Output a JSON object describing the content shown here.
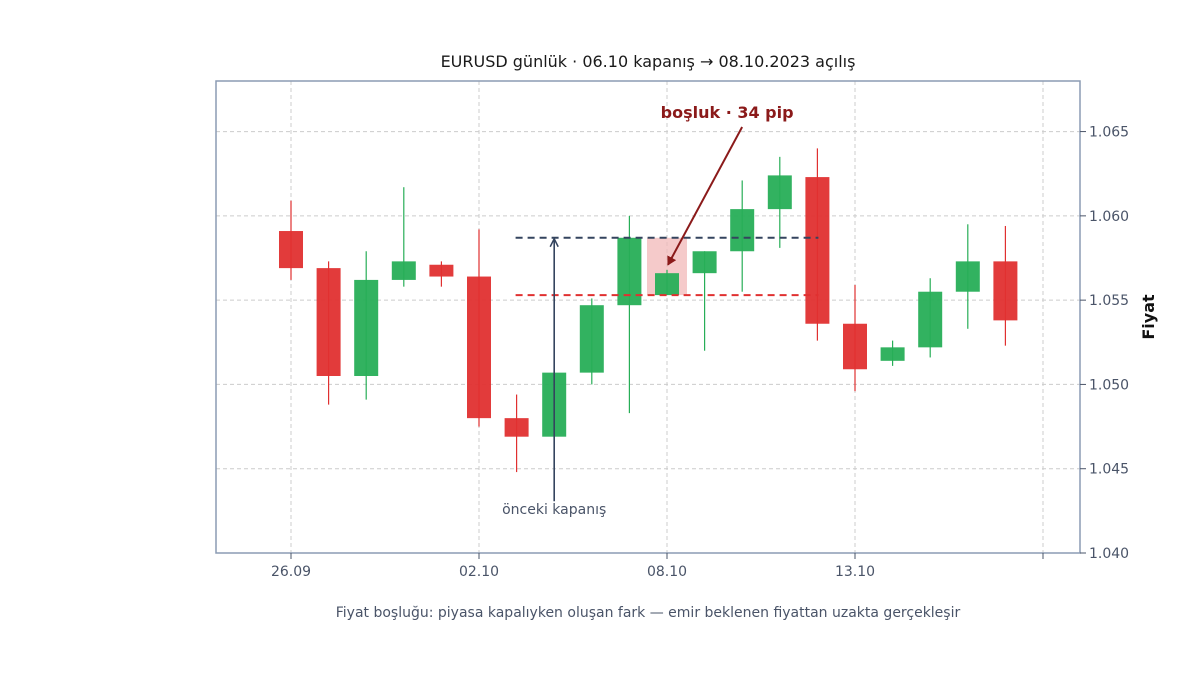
{
  "chart_data": {
    "type": "candlestick",
    "title": "EURUSD günlük · 06.10 kapanış → 08.10.2023 açılış",
    "ylabel": "Fiyat",
    "caption": "Fiyat boşluğu: piyasa kapalıyken oluşan fark — emir beklenen fiyattan uzakta gerçekleşir",
    "ylim": [
      1.04,
      1.068
    ],
    "yticks": [
      1.04,
      1.045,
      1.05,
      1.055,
      1.06,
      1.065
    ],
    "ytick_labels": [
      "1.040",
      "1.045",
      "1.050",
      "1.055",
      "1.060",
      "1.065"
    ],
    "xticks": [
      {
        "index": 0,
        "label": "26.09"
      },
      {
        "index": 5,
        "label": "02.10"
      },
      {
        "index": 10,
        "label": "08.10"
      },
      {
        "index": 15,
        "label": "13.10"
      },
      {
        "index": 20,
        "label": ""
      }
    ],
    "grid": true,
    "up_color": "#27ae57",
    "down_color": "#e03030",
    "candles": [
      {
        "open": 1.0591,
        "high": 1.0609,
        "low": 1.0562,
        "close": 1.0569
      },
      {
        "open": 1.0569,
        "high": 1.0573,
        "low": 1.0488,
        "close": 1.0505
      },
      {
        "open": 1.0505,
        "high": 1.0579,
        "low": 1.0491,
        "close": 1.0562
      },
      {
        "open": 1.0562,
        "high": 1.0617,
        "low": 1.0558,
        "close": 1.0573
      },
      {
        "open": 1.0571,
        "high": 1.0573,
        "low": 1.0558,
        "close": 1.0564
      },
      {
        "open": 1.0564,
        "high": 1.0592,
        "low": 1.0475,
        "close": 1.048
      },
      {
        "open": 1.048,
        "high": 1.0494,
        "low": 1.0448,
        "close": 1.0469
      },
      {
        "open": 1.0469,
        "high": 1.0507,
        "low": 1.0469,
        "close": 1.0507
      },
      {
        "open": 1.0507,
        "high": 1.0551,
        "low": 1.05,
        "close": 1.0547
      },
      {
        "open": 1.0547,
        "high": 1.06,
        "low": 1.0483,
        "close": 1.0587
      },
      {
        "open": 1.0553,
        "high": 1.0568,
        "low": 1.0553,
        "close": 1.0566
      },
      {
        "open": 1.0566,
        "high": 1.0579,
        "low": 1.052,
        "close": 1.0579
      },
      {
        "open": 1.0579,
        "high": 1.0621,
        "low": 1.0555,
        "close": 1.0604
      },
      {
        "open": 1.0604,
        "high": 1.0635,
        "low": 1.0581,
        "close": 1.0624
      },
      {
        "open": 1.0623,
        "high": 1.064,
        "low": 1.0526,
        "close": 1.0536
      },
      {
        "open": 1.0536,
        "high": 1.0559,
        "low": 1.0496,
        "close": 1.0509
      },
      {
        "open": 1.0514,
        "high": 1.0526,
        "low": 1.0511,
        "close": 1.0522
      },
      {
        "open": 1.0522,
        "high": 1.0563,
        "low": 1.0516,
        "close": 1.0555
      },
      {
        "open": 1.0555,
        "high": 1.0595,
        "low": 1.0533,
        "close": 1.0573
      },
      {
        "open": 1.0573,
        "high": 1.0594,
        "low": 1.0523,
        "close": 1.0538
      }
    ],
    "gap": {
      "from_index": 9,
      "to_index": 10,
      "close_level": 1.0587,
      "open_level": 1.0553,
      "line_start_index": 6,
      "line_end_index": 14,
      "highlight_color": "#f2b8b8",
      "close_line_color": "#34445e",
      "open_line_color": "#e03030"
    },
    "annotations": {
      "gap_label": "boşluk · 34 pip",
      "gap_label_color": "#8b1a1a",
      "gap_label_anchor": {
        "index": 11.2,
        "y": 1.0661
      },
      "gap_arrow_target": {
        "index": 10,
        "y": 1.0571
      },
      "prev_close_label": "önceki kapanış",
      "prev_close_label_anchor": {
        "index": 7,
        "y": 1.0423
      },
      "prev_close_arrow_target": {
        "index": 7,
        "y": 1.0587
      },
      "prev_close_arrow_color": "#34445e"
    }
  }
}
